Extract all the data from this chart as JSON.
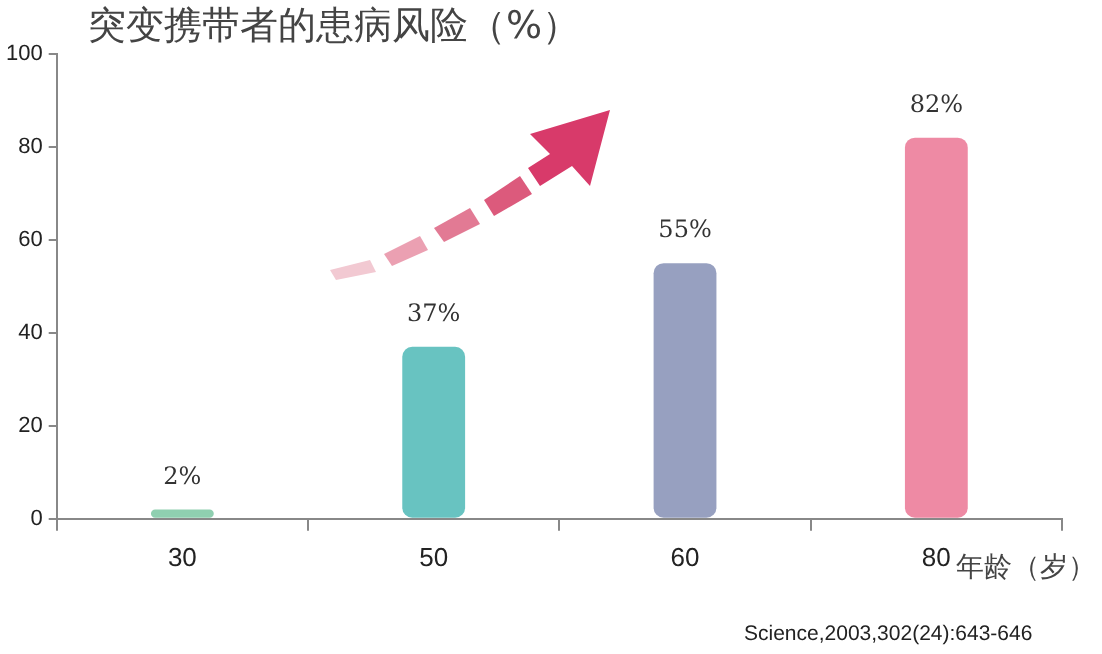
{
  "chart_data": {
    "type": "bar",
    "title": "突变携带者的患病风险（%）",
    "xlabel": "年龄（岁）",
    "categories": [
      "30",
      "50",
      "60",
      "80"
    ],
    "values": [
      2,
      37,
      55,
      82
    ],
    "colors": [
      "#8fcfb0",
      "#68c3c1",
      "#97a0c0",
      "#ee8aa4"
    ],
    "value_labels": [
      "2%",
      "37%",
      "55%",
      "82%"
    ],
    "ylim": [
      0,
      100
    ],
    "yticks": [
      0,
      20,
      40,
      60,
      80,
      100
    ],
    "grid": false,
    "legend": false,
    "annotations": [
      "Science,2003,302(24):643-646"
    ]
  }
}
